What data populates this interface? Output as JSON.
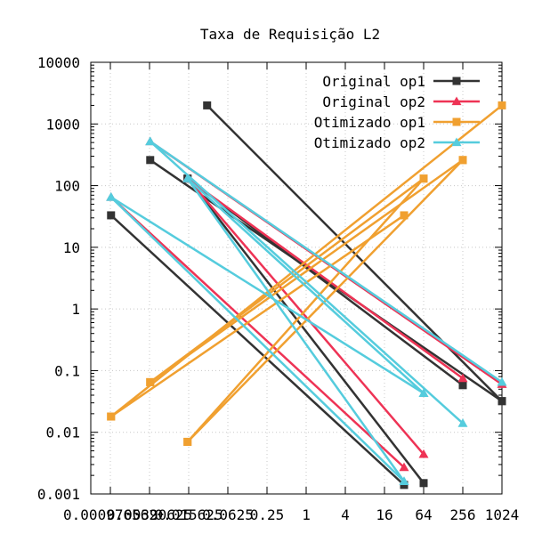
{
  "chart_data": {
    "type": "line",
    "title": "Taxa de Requisição L2",
    "xlabel": "",
    "ylabel": "",
    "x_scale": "log2",
    "y_scale": "log10",
    "xlim": [
      0.000488,
      1024
    ],
    "ylim": [
      0.001,
      10000
    ],
    "x_ticks": [
      0.0009765625,
      0.00390625,
      0.015625,
      0.0625,
      0.25,
      1,
      4,
      16,
      64,
      256,
      1024
    ],
    "x_tick_labels": [
      "0.000976562",
      "0.00390625",
      "0.015625",
      "0.0625",
      "0.25",
      "1",
      "4",
      "16",
      "64",
      "256",
      "1024"
    ],
    "y_ticks": [
      0.001,
      0.01,
      0.1,
      1,
      10,
      100,
      1000,
      10000
    ],
    "y_tick_labels": [
      "0.001",
      "0.01",
      "0.1",
      "1",
      "10",
      "100",
      "1000",
      "10000"
    ],
    "grid": true,
    "legend_position": "top-right",
    "series": [
      {
        "name": "Original op1",
        "color": "#333333",
        "marker": "square",
        "segments": [
          [
            [
              0.001,
              33
            ],
            [
              32,
              0.0014
            ]
          ],
          [
            [
              0.004,
              260
            ],
            [
              1024,
              0.032
            ]
          ],
          [
            [
              0.03,
              2000
            ],
            [
              1024,
              0.032
            ]
          ],
          [
            [
              0.015,
              130
            ],
            [
              256,
              0.058
            ]
          ],
          [
            [
              0.015,
              130
            ],
            [
              64,
              0.0015
            ]
          ]
        ]
      },
      {
        "name": "Original op2",
        "color": "#ee3355",
        "marker": "triangle",
        "segments": [
          [
            [
              0.001,
              65
            ],
            [
              32,
              0.0027
            ]
          ],
          [
            [
              0.004,
              520
            ],
            [
              1024,
              0.06
            ]
          ],
          [
            [
              0.015,
              130
            ],
            [
              64,
              0.0044
            ]
          ],
          [
            [
              0.015,
              130
            ],
            [
              256,
              0.075
            ]
          ]
        ]
      },
      {
        "name": "Otimizado op1",
        "color": "#f0a030",
        "marker": "square",
        "segments": [
          [
            [
              0.001,
              0.018
            ],
            [
              32,
              33
            ]
          ],
          [
            [
              0.001,
              0.018
            ],
            [
              1024,
              2000
            ]
          ],
          [
            [
              0.004,
              0.065
            ],
            [
              64,
              130
            ]
          ],
          [
            [
              0.004,
              0.065
            ],
            [
              256,
              260
            ]
          ],
          [
            [
              0.015,
              0.007
            ],
            [
              64,
              130
            ]
          ],
          [
            [
              0.015,
              0.007
            ],
            [
              256,
              260
            ]
          ]
        ]
      },
      {
        "name": "Otimizado op2",
        "color": "#55ccdd",
        "marker": "triangle",
        "segments": [
          [
            [
              0.001,
              65
            ],
            [
              32,
              0.0016
            ]
          ],
          [
            [
              0.001,
              65
            ],
            [
              64,
              0.043
            ]
          ],
          [
            [
              0.004,
              520
            ],
            [
              1024,
              0.065
            ]
          ],
          [
            [
              0.004,
              520
            ],
            [
              256,
              0.014
            ]
          ],
          [
            [
              0.015,
              130
            ],
            [
              64,
              0.043
            ]
          ],
          [
            [
              0.015,
              130
            ],
            [
              32,
              0.0016
            ]
          ]
        ]
      }
    ]
  }
}
